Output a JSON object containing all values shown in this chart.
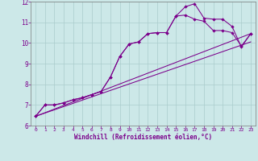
{
  "bg_color": "#cce8e8",
  "line_color": "#7b008b",
  "grid_color": "#aacccc",
  "xlabel": "Windchill (Refroidissement éolien,°C)",
  "xlim": [
    -0.5,
    23.5
  ],
  "ylim": [
    6,
    12
  ],
  "yticks": [
    6,
    7,
    8,
    9,
    10,
    11,
    12
  ],
  "xticks": [
    0,
    1,
    2,
    3,
    4,
    5,
    6,
    7,
    8,
    9,
    10,
    11,
    12,
    13,
    14,
    15,
    16,
    17,
    18,
    19,
    20,
    21,
    22,
    23
  ],
  "curve1_x": [
    0,
    1,
    2,
    3,
    4,
    5,
    6,
    7,
    8,
    9,
    10,
    11,
    12,
    13,
    14,
    15,
    16,
    17,
    18,
    19,
    20,
    21,
    22,
    23
  ],
  "curve1_y": [
    6.45,
    7.0,
    7.0,
    7.1,
    7.25,
    7.35,
    7.5,
    7.65,
    8.35,
    9.35,
    9.95,
    10.05,
    10.45,
    10.5,
    10.5,
    11.3,
    11.75,
    11.9,
    11.2,
    11.15,
    11.15,
    10.8,
    9.8,
    10.45
  ],
  "curve2_x": [
    0,
    1,
    2,
    3,
    4,
    5,
    6,
    7,
    8,
    9,
    10,
    11,
    12,
    13,
    14,
    15,
    16,
    17,
    18,
    19,
    20,
    21,
    22,
    23
  ],
  "curve2_y": [
    6.45,
    7.0,
    7.0,
    7.1,
    7.25,
    7.35,
    7.5,
    7.65,
    8.35,
    9.35,
    9.95,
    10.05,
    10.45,
    10.5,
    10.5,
    11.3,
    11.35,
    11.15,
    11.05,
    10.6,
    10.6,
    10.5,
    9.85,
    10.45
  ],
  "line1_x": [
    0,
    23
  ],
  "line1_y": [
    6.45,
    10.45
  ],
  "line2_x": [
    0,
    23
  ],
  "line2_y": [
    6.45,
    10.05
  ]
}
